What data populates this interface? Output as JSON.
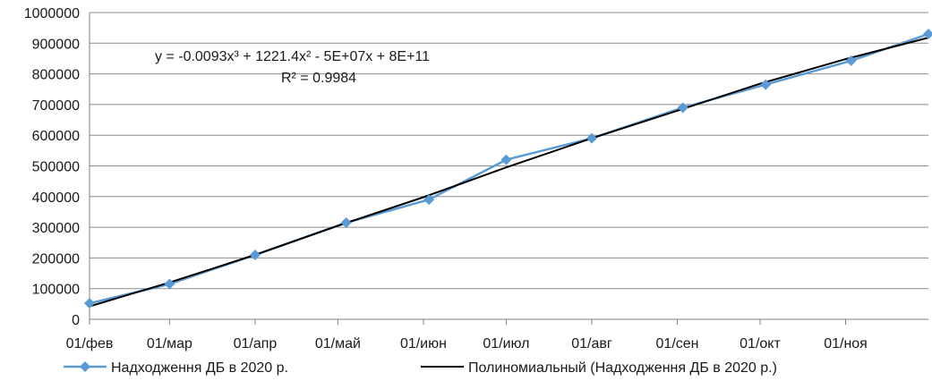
{
  "chart_data": {
    "type": "line",
    "x_categories": [
      "01/фев",
      "01/мар",
      "01/апр",
      "01/май",
      "01/июн",
      "01/июл",
      "01/авг",
      "01/сен",
      "01/окт",
      "01/ноя"
    ],
    "y_ticks": [
      "0",
      "100000",
      "200000",
      "300000",
      "400000",
      "500000",
      "600000",
      "700000",
      "800000",
      "900000",
      "1000000"
    ],
    "ylim": [
      0,
      1000000
    ],
    "xlim": [
      "2020-02-01",
      "2020-12-01"
    ],
    "grid": "horizontal",
    "legend_position": "bottom",
    "series": [
      {
        "name": "Надходження ДБ в 2020 р.",
        "color": "#5b9bd5",
        "marker": "diamond",
        "points": [
          {
            "x": "2020-02-01",
            "y": 52000
          },
          {
            "x": "2020-03-01",
            "y": 115000
          },
          {
            "x": "2020-04-01",
            "y": 210000
          },
          {
            "x": "2020-05-04",
            "y": 315000
          },
          {
            "x": "2020-06-03",
            "y": 390000
          },
          {
            "x": "2020-07-01",
            "y": 520000
          },
          {
            "x": "2020-08-01",
            "y": 590000
          },
          {
            "x": "2020-09-03",
            "y": 690000
          },
          {
            "x": "2020-10-03",
            "y": 765000
          },
          {
            "x": "2020-11-03",
            "y": 843000
          },
          {
            "x": "2020-12-01",
            "y": 930000
          }
        ]
      },
      {
        "name": "Полиномиальный (Надходження ДБ в 2020 р.)",
        "color": "#000000",
        "type": "trendline",
        "points": [
          {
            "x": "2020-02-01",
            "y": 42000
          },
          {
            "x": "2020-03-01",
            "y": 120000
          },
          {
            "x": "2020-04-01",
            "y": 210000
          },
          {
            "x": "2020-05-01",
            "y": 305000
          },
          {
            "x": "2020-06-01",
            "y": 398000
          },
          {
            "x": "2020-07-01",
            "y": 495000
          },
          {
            "x": "2020-08-01",
            "y": 590000
          },
          {
            "x": "2020-09-01",
            "y": 680000
          },
          {
            "x": "2020-10-01",
            "y": 768000
          },
          {
            "x": "2020-11-01",
            "y": 848000
          },
          {
            "x": "2020-12-01",
            "y": 918000
          }
        ]
      }
    ],
    "annotations": {
      "equation": "y = -0.0093x³ + 1221.4x² - 5E+07x + 8E+11",
      "r_squared": "R² = 0.9984"
    }
  }
}
